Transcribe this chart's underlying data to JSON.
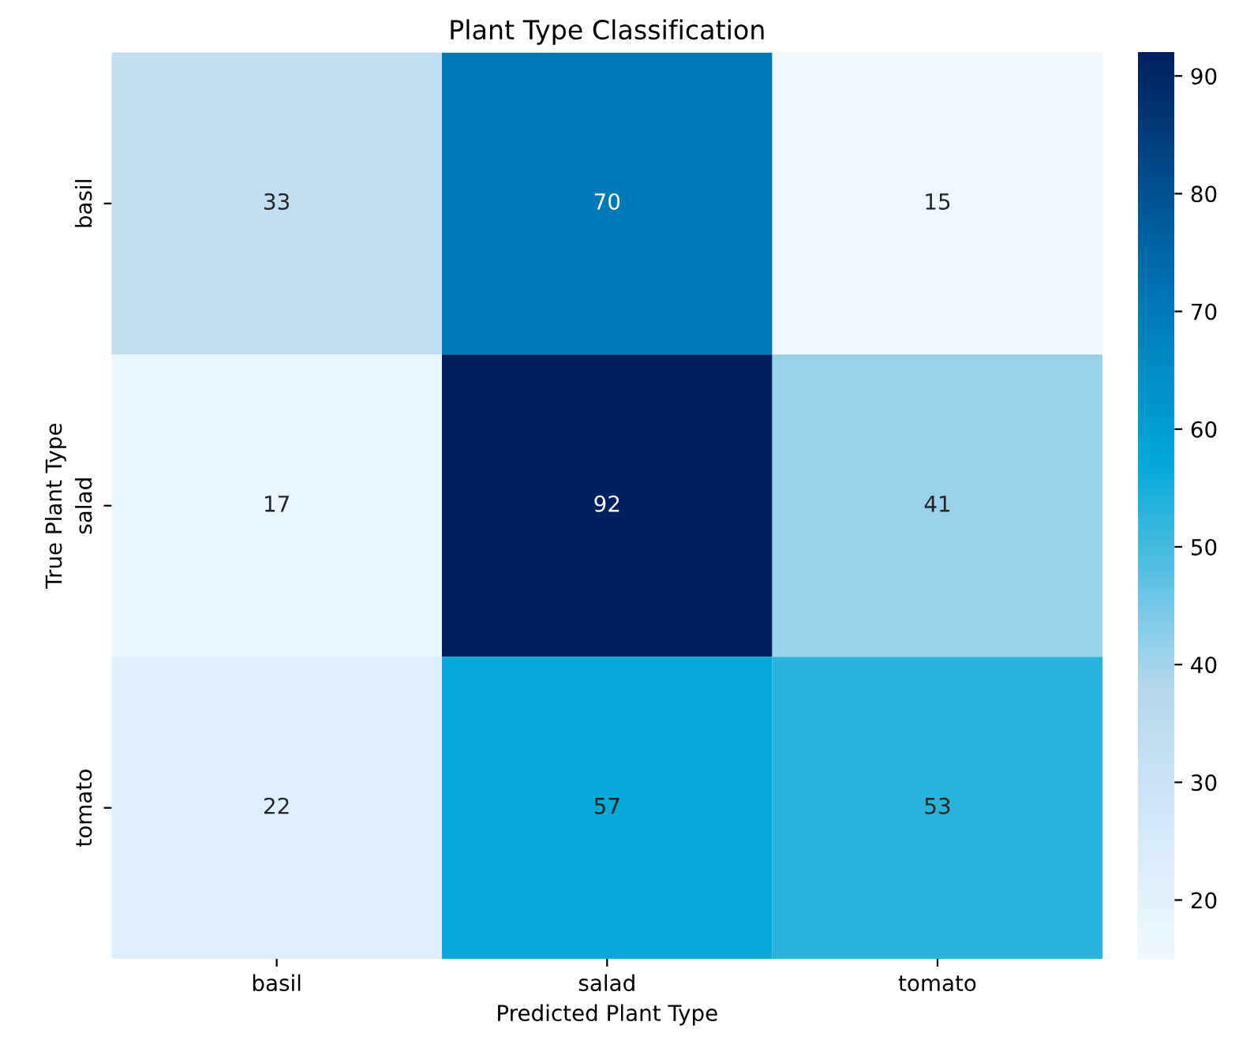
{
  "chart_data": {
    "type": "heatmap",
    "title": "Plant Type Classification",
    "xlabel": "Predicted Plant Type",
    "ylabel": "True Plant Type",
    "categories": [
      "basil",
      "salad",
      "tomato"
    ],
    "y_categories": [
      "basil",
      "salad",
      "tomato"
    ],
    "cells": [
      [
        33,
        70,
        15
      ],
      [
        17,
        92,
        41
      ],
      [
        22,
        57,
        53
      ]
    ],
    "clim": [
      15,
      92
    ],
    "cticks": [
      20,
      30,
      40,
      50,
      60,
      70,
      80,
      90
    ],
    "data_labels": true
  }
}
